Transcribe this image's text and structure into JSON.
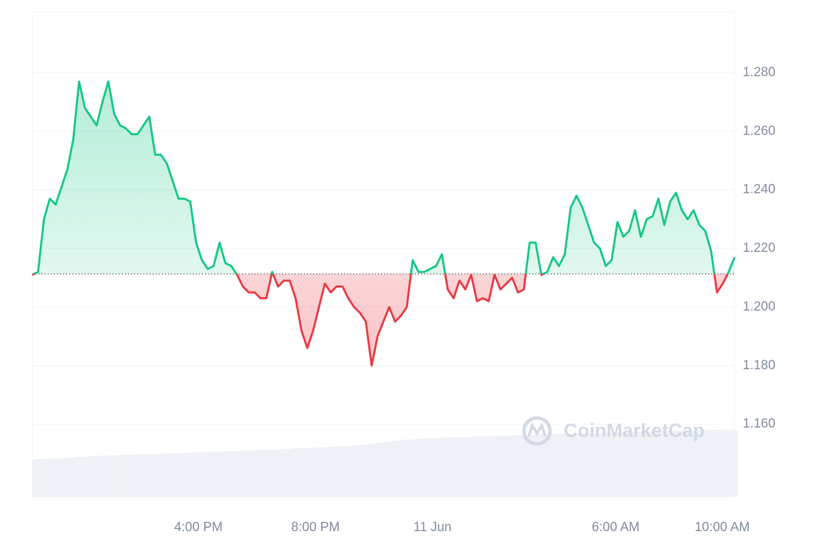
{
  "chart_data": {
    "type": "baseline-line",
    "values": [
      1.211,
      1.212,
      1.23,
      1.237,
      1.235,
      1.241,
      1.247,
      1.257,
      1.277,
      1.268,
      1.265,
      1.262,
      1.27,
      1.277,
      1.266,
      1.262,
      1.261,
      1.259,
      1.259,
      1.262,
      1.265,
      1.252,
      1.252,
      1.249,
      1.243,
      1.237,
      1.237,
      1.236,
      1.222,
      1.216,
      1.213,
      1.214,
      1.222,
      1.215,
      1.214,
      1.211,
      1.207,
      1.205,
      1.205,
      1.203,
      1.203,
      1.212,
      1.207,
      1.209,
      1.209,
      1.203,
      1.192,
      1.186,
      1.192,
      1.2,
      1.208,
      1.205,
      1.207,
      1.207,
      1.203,
      1.2,
      1.198,
      1.195,
      1.18,
      1.19,
      1.195,
      1.2,
      1.195,
      1.197,
      1.2,
      1.216,
      1.212,
      1.212,
      1.213,
      1.214,
      1.218,
      1.206,
      1.203,
      1.209,
      1.206,
      1.211,
      1.202,
      1.203,
      1.202,
      1.211,
      1.206,
      1.208,
      1.21,
      1.205,
      1.206,
      1.222,
      1.222,
      1.211,
      1.212,
      1.217,
      1.214,
      1.218,
      1.234,
      1.238,
      1.234,
      1.228,
      1.222,
      1.22,
      1.214,
      1.216,
      1.229,
      1.224,
      1.226,
      1.233,
      1.224,
      1.23,
      1.231,
      1.237,
      1.228,
      1.236,
      1.239,
      1.233,
      1.23,
      1.233,
      1.228,
      1.226,
      1.219,
      1.205,
      1.208,
      1.212,
      1.217
    ],
    "baseline": 1.2113,
    "colors": {
      "up": "#16c784",
      "down": "#ea3943"
    },
    "ylim": [
      1.1352,
      1.3006
    ],
    "yticks": [
      {
        "value": 1.16,
        "label": "1.160"
      },
      {
        "value": 1.18,
        "label": "1.180"
      },
      {
        "value": 1.2,
        "label": "1.200"
      },
      {
        "value": 1.22,
        "label": "1.220"
      },
      {
        "value": 1.24,
        "label": "1.240"
      },
      {
        "value": 1.26,
        "label": "1.260"
      },
      {
        "value": 1.28,
        "label": "1.280"
      }
    ],
    "xticks": [
      {
        "value": 28.4,
        "label": "4:00 PM"
      },
      {
        "value": 48.4,
        "label": "8:00 PM"
      },
      {
        "value": 68.4,
        "label": "11 Jun"
      },
      {
        "value": 99.7,
        "label": "6:00 AM"
      },
      {
        "value": 117.9,
        "label": "10:00 AM"
      }
    ],
    "grid": true,
    "volume": {
      "color": "#eef1f5",
      "vlim": [
        0,
        100
      ],
      "values": [
        51,
        52,
        52,
        53,
        53,
        53,
        54,
        54,
        55,
        55,
        56,
        56,
        57,
        57,
        57,
        58,
        58,
        58,
        58,
        59,
        59,
        59,
        59,
        60,
        60,
        60,
        60,
        61,
        61,
        61,
        62,
        62,
        62,
        63,
        63,
        63,
        64,
        64,
        64,
        65,
        65,
        65,
        65,
        66,
        66,
        67,
        67,
        67,
        68,
        68,
        68,
        69,
        69,
        70,
        70,
        71,
        71,
        72,
        73,
        74,
        75,
        76,
        77,
        78,
        79,
        79,
        80,
        80,
        81,
        81,
        81,
        82,
        82,
        82,
        82,
        83,
        83,
        83,
        83,
        84,
        84,
        84,
        84,
        85,
        85,
        85,
        85,
        86,
        86,
        86,
        87,
        87,
        87,
        87,
        88,
        88,
        88,
        88,
        89,
        89,
        89,
        89,
        89,
        90,
        90,
        90,
        90,
        90,
        91,
        91,
        91,
        91,
        91,
        91,
        92,
        92,
        92,
        92,
        92,
        92,
        92
      ]
    },
    "watermark": "CoinMarketCap"
  }
}
